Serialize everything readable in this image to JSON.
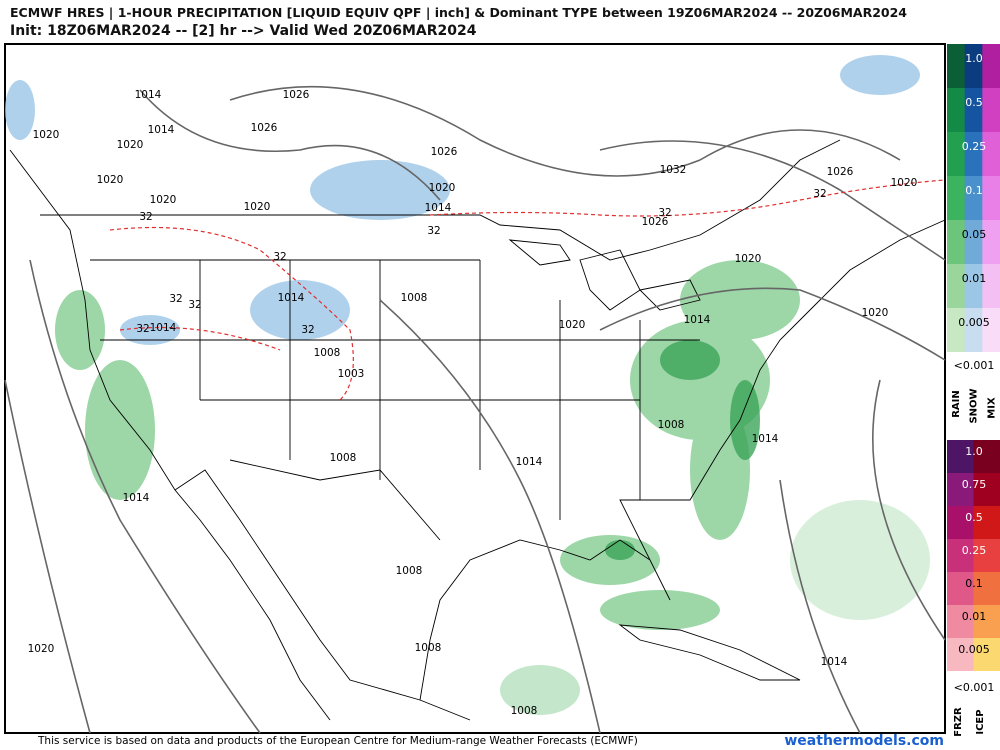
{
  "header": {
    "title": "ECMWF HRES | 1-HOUR PRECIPITATION [LIQUID EQUIV QPF | inch] & Dominant TYPE between 19Z06MAR2024 -- 20Z06MAR2024",
    "subtitle": "Init: 18Z06MAR2024 -- [2] hr --> Valid Wed 20Z06MAR2024"
  },
  "map": {
    "labels": [
      "1014",
      "1026",
      "1014",
      "1026",
      "1020",
      "1020",
      "1026",
      "1020",
      "1032",
      "1026",
      "1020",
      "1020",
      "32",
      "1020",
      "1020",
      "1014",
      "32",
      "32",
      "1026",
      "32",
      "32",
      "1020",
      "32",
      "32",
      "1014",
      "1008",
      "32",
      "1014",
      "32",
      "1020",
      "1014",
      "1020",
      "1008",
      "1003",
      "1008",
      "1014",
      "1008",
      "1014",
      "1014",
      "1008",
      "1008",
      "1020",
      "1014",
      "1008"
    ]
  },
  "legend": {
    "precip_levels": [
      "1.0",
      "0.5",
      "0.25",
      "0.1",
      "0.05",
      "0.01",
      "0.005"
    ],
    "precip_floor": "<0.001",
    "precip_types": [
      "RAIN",
      "SNOW",
      "MIX"
    ],
    "ice_levels": [
      "1.0",
      "0.75",
      "0.5",
      "0.25",
      "0.1",
      "0.01",
      "0.005"
    ],
    "ice_floor": "<0.001",
    "ice_types": [
      "FRZR",
      "ICEP"
    ]
  },
  "footer": {
    "credit": "This service is based on data and products of the European Centre for Medium-range Weather Forecasts (ECMWF)",
    "site": "weathermodels.com"
  }
}
